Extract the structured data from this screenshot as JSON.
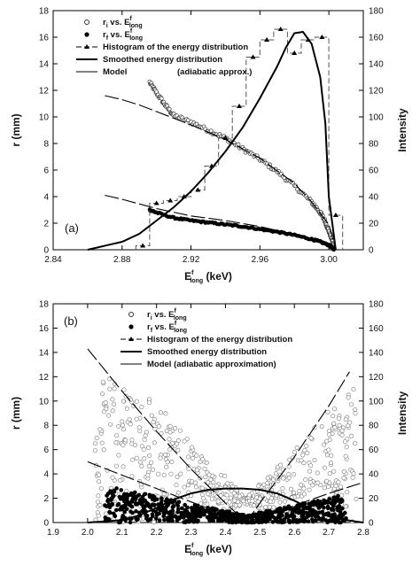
{
  "chart_data": [
    {
      "type": "scatter",
      "panel_label": "(a)",
      "xlabel": {
        "base": "E",
        "sup": "f",
        "sub": "long",
        "unit": " (keV)"
      },
      "ylabel_left": "r (mm)",
      "ylabel_right": "Intensity",
      "xlim": [
        2.84,
        3.02
      ],
      "ylim": [
        0,
        18
      ],
      "y2lim": [
        0,
        180
      ],
      "xticks": [
        "2.84",
        "2.88",
        "2.92",
        "2.96",
        "3.00"
      ],
      "yticks": [
        "0",
        "2",
        "4",
        "6",
        "8",
        "10",
        "12",
        "14",
        "16",
        "18"
      ],
      "y2ticks": [
        "0",
        "20",
        "40",
        "60",
        "80",
        "100",
        "120",
        "140",
        "160",
        "180"
      ],
      "legend": [
        {
          "marker": "open-circle",
          "label": "r",
          "label_sub": "i",
          "label_mid": " vs. E",
          "label_sup": "f",
          "label_sub2": "long"
        },
        {
          "marker": "filled-circle",
          "label": "r",
          "label_sub": "f",
          "label_mid": " vs. E",
          "label_sup": "f",
          "label_sub2": "long"
        },
        {
          "marker": "dash-triangle",
          "label": "Histogram of the energy distribution"
        },
        {
          "marker": "thick-line",
          "label": "Smoothed energy distribution"
        },
        {
          "marker": "thin-line",
          "label": "Model",
          "label_extra": "(adiabatic approx.)"
        }
      ],
      "series": [
        {
          "label_ref": 0,
          "style": "open",
          "x": [
            2.896,
            2.9,
            2.905,
            2.91,
            2.92,
            2.93,
            2.94,
            2.95,
            2.96,
            2.97,
            2.98,
            2.99,
            2.995,
            2.998,
            3.0,
            3.002,
            3.003
          ],
          "y": [
            12.6,
            11.8,
            10.9,
            10.1,
            9.6,
            9.0,
            8.4,
            7.6,
            6.8,
            5.9,
            4.8,
            3.6,
            2.8,
            2.1,
            1.4,
            0.7,
            0.2
          ]
        },
        {
          "label_ref": 1,
          "style": "filled",
          "x": [
            2.896,
            2.9,
            2.91,
            2.92,
            2.93,
            2.94,
            2.95,
            2.96,
            2.97,
            2.98,
            2.99,
            2.995,
            3.0,
            3.002,
            3.003
          ],
          "y": [
            3.0,
            2.8,
            2.4,
            2.2,
            2.05,
            1.9,
            1.75,
            1.55,
            1.35,
            1.1,
            0.8,
            0.6,
            0.35,
            0.15,
            0.05
          ]
        },
        {
          "label_ref": 2,
          "style": "histogram",
          "x": [
            2.888,
            2.896,
            2.904,
            2.912,
            2.92,
            2.928,
            2.936,
            2.944,
            2.952,
            2.96,
            2.968,
            2.976,
            2.984,
            2.992,
            3.0
          ],
          "y2": [
            3,
            35,
            37,
            40,
            45,
            63,
            84,
            108,
            145,
            158,
            166,
            148,
            158,
            160,
            26
          ]
        },
        {
          "label_ref": 3,
          "style": "smooth",
          "x": [
            2.86,
            2.88,
            2.89,
            2.9,
            2.91,
            2.92,
            2.93,
            2.94,
            2.95,
            2.96,
            2.97,
            2.975,
            2.98,
            2.985,
            2.99,
            2.995,
            2.998,
            3.0,
            3.004
          ],
          "y2": [
            0,
            6,
            12,
            22,
            32,
            44,
            58,
            74,
            92,
            114,
            138,
            152,
            163,
            164,
            155,
            130,
            95,
            40,
            0
          ]
        },
        {
          "label_ref": 4,
          "style": "model",
          "x": [
            2.87,
            2.88,
            2.89,
            2.9,
            2.92,
            2.94,
            2.96,
            2.98,
            2.99,
            3.0,
            3.004
          ],
          "y": [
            11.6,
            11.3,
            10.9,
            10.4,
            9.4,
            8.3,
            6.9,
            5.0,
            3.6,
            1.9,
            0.0
          ]
        },
        {
          "label_ref": 4,
          "style": "model",
          "x": [
            2.87,
            2.88,
            2.9,
            2.92,
            2.94,
            2.96,
            2.98,
            2.99,
            3.0,
            3.004
          ],
          "y": [
            4.1,
            3.8,
            3.1,
            2.55,
            2.2,
            1.75,
            1.15,
            0.8,
            0.35,
            0.0
          ]
        }
      ]
    },
    {
      "type": "scatter",
      "panel_label": "(b)",
      "xlabel": {
        "base": "E",
        "sup": "f",
        "sub": "long",
        "unit": " (keV)"
      },
      "ylabel_left": "r (mm)",
      "ylabel_right": "Intensity",
      "xlim": [
        1.9,
        2.8
      ],
      "ylim": [
        0,
        18
      ],
      "y2lim": [
        0,
        180
      ],
      "xticks": [
        "1.9",
        "2.0",
        "2.1",
        "2.2",
        "2.3",
        "2.4",
        "2.5",
        "2.6",
        "2.7",
        "2.8"
      ],
      "yticks": [
        "0",
        "2",
        "4",
        "6",
        "8",
        "10",
        "12",
        "14",
        "16",
        "18"
      ],
      "y2ticks": [
        "0",
        "20",
        "40",
        "60",
        "80",
        "100",
        "120",
        "140",
        "160",
        "180"
      ],
      "legend": [
        {
          "marker": "open-circle",
          "label": "r",
          "label_sub": "i",
          "label_mid": " vs. E",
          "label_sup": "f",
          "label_sub2": "long"
        },
        {
          "marker": "filled-circle",
          "label": "r",
          "label_sub": "f",
          "label_mid": " vs. E",
          "label_sup": "f",
          "label_sub2": "long"
        },
        {
          "marker": "dash-triangle",
          "label": "Histogram of the energy distribution"
        },
        {
          "marker": "thick-line",
          "label": "Smoothed energy distribution"
        },
        {
          "marker": "thin-line",
          "label": "Model (adiabatic approximation)"
        }
      ],
      "series": [
        {
          "label_ref": 0,
          "style": "open-cloud",
          "x_range": [
            2.02,
            2.78
          ],
          "y_range": [
            0,
            12.5
          ],
          "centre": 2.46
        },
        {
          "label_ref": 1,
          "style": "filled-cloud",
          "x_range": [
            2.05,
            2.75
          ],
          "y_range": [
            0,
            4.0
          ],
          "centre": 2.46
        },
        {
          "label_ref": 3,
          "style": "smooth",
          "x": [
            2.0,
            2.1,
            2.15,
            2.2,
            2.25,
            2.3,
            2.35,
            2.4,
            2.45,
            2.5,
            2.55,
            2.6,
            2.65,
            2.7,
            2.75,
            2.8
          ],
          "y2": [
            0,
            2,
            6,
            12,
            19,
            24,
            27,
            28,
            28,
            27,
            24,
            18,
            11,
            5,
            2,
            0
          ]
        },
        {
          "label_ref": 4,
          "style": "model",
          "x": [
            2.0,
            2.1,
            2.2,
            2.3,
            2.4,
            2.46
          ],
          "y": [
            14.3,
            10.8,
            7.5,
            4.4,
            1.6,
            0.0
          ]
        },
        {
          "label_ref": 4,
          "style": "model",
          "x": [
            2.46,
            2.5,
            2.6,
            2.7,
            2.76
          ],
          "y": [
            0.0,
            1.6,
            5.4,
            9.6,
            12.4
          ]
        },
        {
          "label_ref": 4,
          "style": "model",
          "x": [
            2.0,
            2.1,
            2.2,
            2.3,
            2.4,
            2.46
          ],
          "y": [
            5.0,
            3.9,
            2.8,
            1.7,
            0.65,
            0.0
          ]
        },
        {
          "label_ref": 4,
          "style": "model",
          "x": [
            2.46,
            2.5,
            2.6,
            2.7,
            2.8
          ],
          "y": [
            0.0,
            0.4,
            1.4,
            2.4,
            3.3
          ]
        }
      ]
    }
  ]
}
